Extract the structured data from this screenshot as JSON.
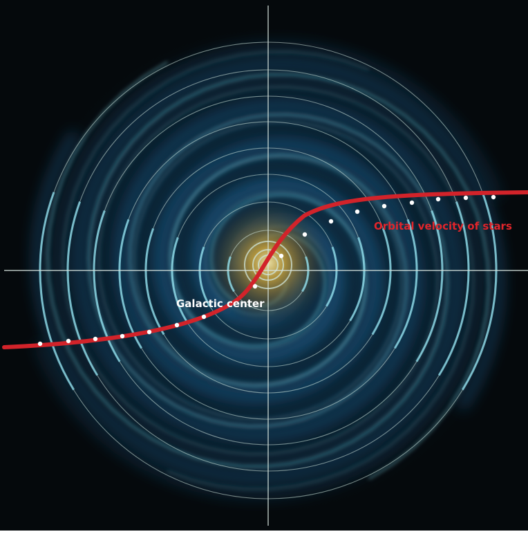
{
  "labels": {
    "center": "Galactic center",
    "curve": "Orbital velocity of stars"
  },
  "colors": {
    "background": "#05090c",
    "ring": "#cfe6dc",
    "axis": "#d7e4de",
    "curve": "#d2232a",
    "dot": "#ffffff",
    "center_label": "#ffffff",
    "curve_label": "#e2252b",
    "arm_blue": "#2f86c8",
    "arm_cyan": "#8ee3f2",
    "core": "#c9a23a"
  }
}
